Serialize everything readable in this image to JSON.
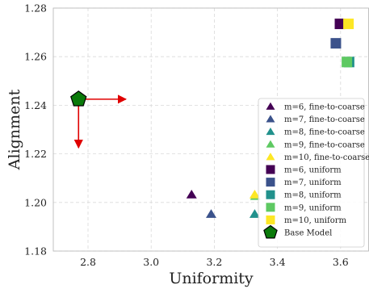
{
  "chart_data": {
    "type": "scatter",
    "xlabel": "Uniformity",
    "ylabel": "Alignment",
    "xlim": [
      2.69,
      3.69
    ],
    "ylim": [
      1.18,
      1.28
    ],
    "xticks": [
      2.8,
      3.0,
      3.2,
      3.4,
      3.6
    ],
    "xtick_labels": [
      "2.8",
      "3.0",
      "3.2",
      "3.4",
      "3.6"
    ],
    "yticks": [
      1.18,
      1.2,
      1.22,
      1.24,
      1.26,
      1.28
    ],
    "ytick_labels": [
      "1.18",
      "1.20",
      "1.22",
      "1.24",
      "1.26",
      "1.28"
    ],
    "grid": true,
    "legend_position": "lower-right",
    "series": [
      {
        "name": "m=6, fine-to-coarse",
        "marker": "triangle",
        "color": "#440154",
        "x": 3.128,
        "y": 1.2032
      },
      {
        "name": "m=7, fine-to-coarse",
        "marker": "triangle",
        "color": "#3b528b",
        "x": 3.19,
        "y": 1.1952
      },
      {
        "name": "m=8, fine-to-coarse",
        "marker": "triangle",
        "color": "#21918c",
        "x": 3.328,
        "y": 1.1952
      },
      {
        "name": "m=9, fine-to-coarse",
        "marker": "triangle",
        "color": "#5ec962",
        "x": 3.33,
        "y": 1.2026
      },
      {
        "name": "m=10, fine-to-coarse",
        "marker": "triangle",
        "color": "#fde725",
        "x": 3.328,
        "y": 1.2032
      },
      {
        "name": "m=6, uniform",
        "marker": "square",
        "color": "#440154",
        "x": 3.598,
        "y": 1.2735
      },
      {
        "name": "m=7, uniform",
        "marker": "square",
        "color": "#3b528b",
        "x": 3.585,
        "y": 1.2655
      },
      {
        "name": "m=8, uniform",
        "marker": "square",
        "color": "#21918c",
        "x": 3.627,
        "y": 1.2578
      },
      {
        "name": "m=9, uniform",
        "marker": "square",
        "color": "#5ec962",
        "x": 3.62,
        "y": 1.2578
      },
      {
        "name": "m=10, uniform",
        "marker": "square",
        "color": "#fde725",
        "x": 3.625,
        "y": 1.2735
      },
      {
        "name": "Base Model",
        "marker": "pentagon",
        "color": "#0a7a0a",
        "x": 2.77,
        "y": 1.2425
      }
    ],
    "annotations": [
      {
        "type": "arrow",
        "color": "#e00000",
        "from": [
          2.77,
          1.2425
        ],
        "to": [
          2.92,
          1.2425
        ]
      },
      {
        "type": "arrow",
        "color": "#e00000",
        "from": [
          2.77,
          1.2425
        ],
        "to": [
          2.77,
          1.2225
        ]
      }
    ]
  }
}
